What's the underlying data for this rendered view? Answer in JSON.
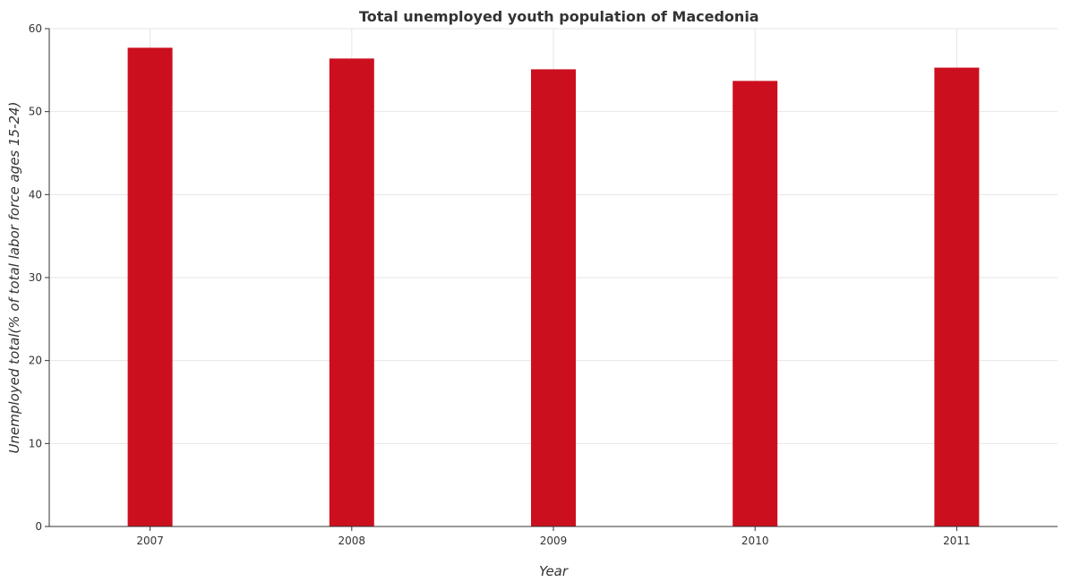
{
  "chart_data": {
    "type": "bar",
    "title": "Total unemployed youth population of Macedonia",
    "xlabel": "Year",
    "ylabel": "Unemployed total(% of total labor force ages 15-24)",
    "categories": [
      "2007",
      "2008",
      "2009",
      "2010",
      "2011"
    ],
    "values": [
      57.7,
      56.4,
      55.1,
      53.7,
      55.3
    ],
    "ylim": [
      0,
      60
    ],
    "yticks": [
      0,
      10,
      20,
      30,
      40,
      50,
      60
    ],
    "grid": true,
    "bar_color": "#cc0f1e"
  }
}
